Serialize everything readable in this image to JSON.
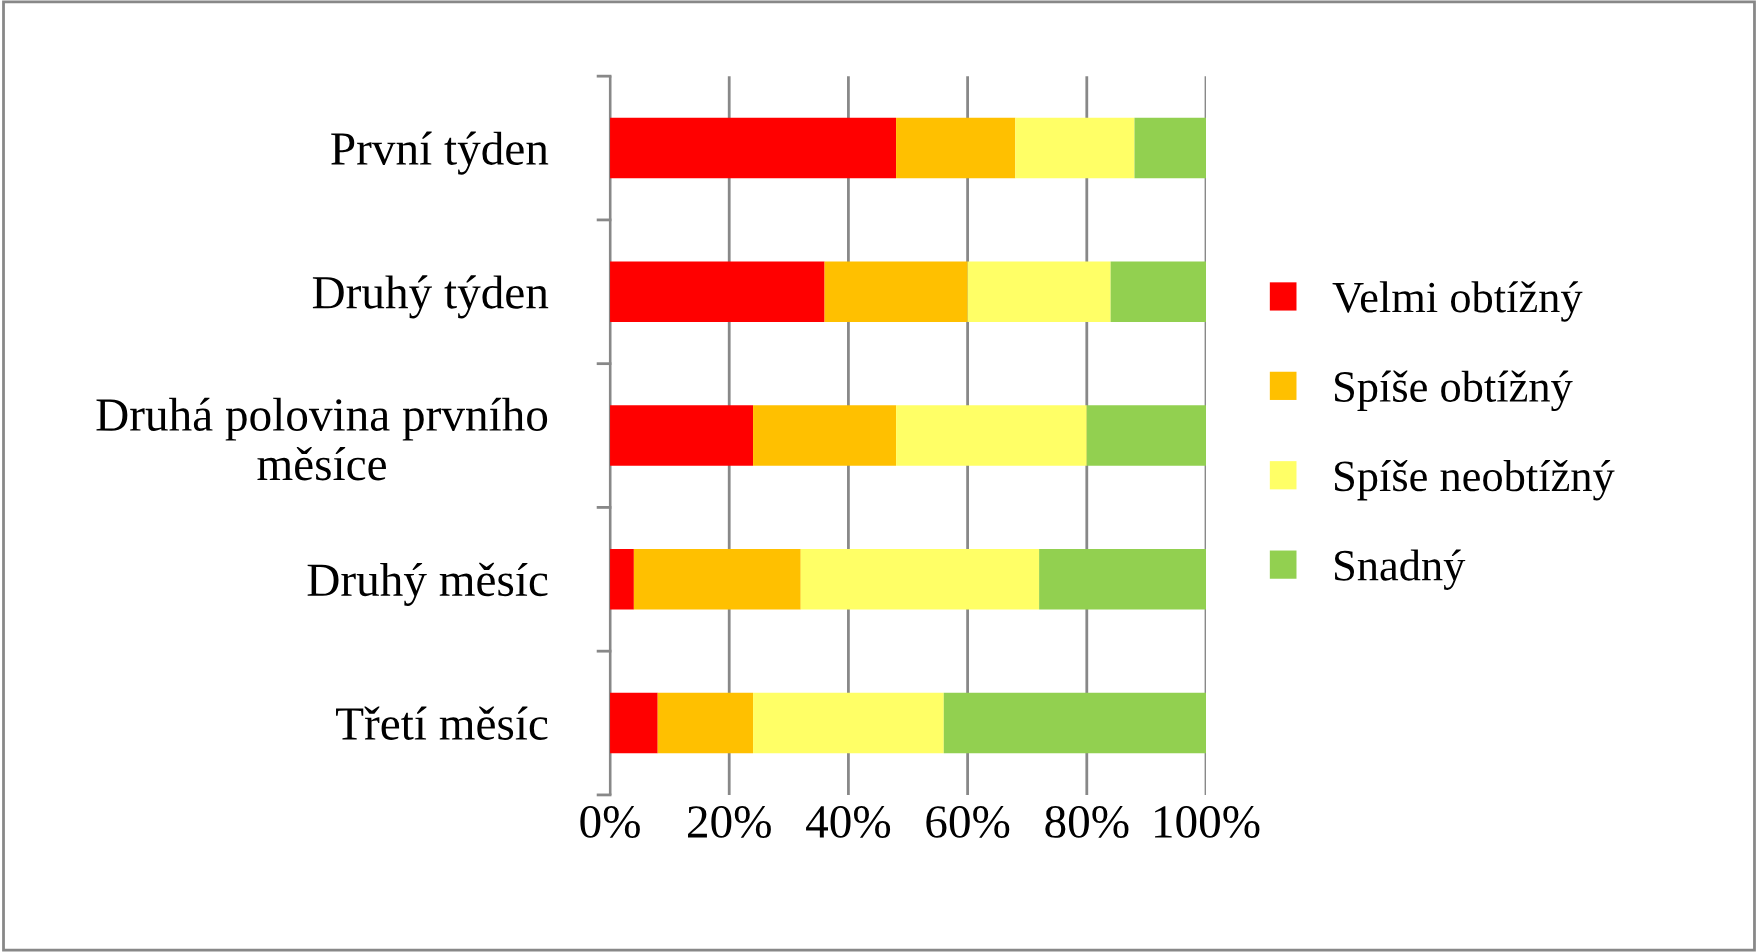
{
  "chart_data": {
    "type": "bar",
    "orientation": "horizontal",
    "stacked": true,
    "categories": [
      "První týden",
      "Druhý týden",
      "Druhá polovina prvního\nměsíce",
      "Druhý měsíc",
      "Třetí měsíc"
    ],
    "series": [
      {
        "name": "Velmi obtížný",
        "color": "#ff0000",
        "values": [
          48,
          36,
          24,
          4,
          8
        ]
      },
      {
        "name": "Spíše obtížný",
        "color": "#ffc000",
        "values": [
          20,
          24,
          24,
          28,
          16
        ]
      },
      {
        "name": "Spíše neobtížný",
        "color": "#ffff66",
        "values": [
          20,
          24,
          32,
          40,
          32
        ]
      },
      {
        "name": "Snadný",
        "color": "#92d050",
        "values": [
          12,
          16,
          20,
          28,
          44
        ]
      }
    ],
    "xlim": [
      0,
      100
    ],
    "xticks": [
      {
        "value": 0,
        "label": "0%"
      },
      {
        "value": 20,
        "label": "20%"
      },
      {
        "value": 40,
        "label": "40%"
      },
      {
        "value": 60,
        "label": "60%"
      },
      {
        "value": 80,
        "label": "80%"
      },
      {
        "value": 100,
        "label": "100%"
      }
    ],
    "grid": "x",
    "legend": "right"
  }
}
